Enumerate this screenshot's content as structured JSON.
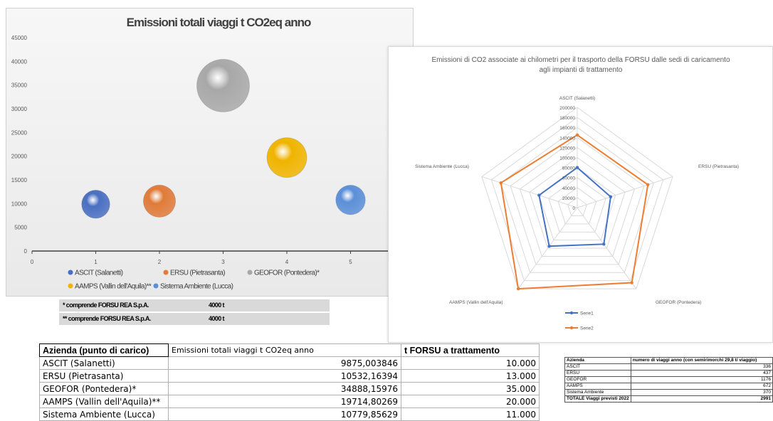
{
  "chart_data": [
    {
      "type": "scatter",
      "title": "Emissioni totali viaggi t CO2eq anno",
      "x": [
        1,
        2,
        3,
        4,
        5
      ],
      "series": [
        {
          "name": "ASCIT (Salanetti)",
          "x": 1,
          "y": 9875.003846,
          "size": 10000
        },
        {
          "name": "ERSU (Pietrasanta)",
          "x": 2,
          "y": 10532.16394,
          "size": 13000
        },
        {
          "name": "GEOFOR (Pontedera)*",
          "x": 3,
          "y": 34888.15976,
          "size": 35000
        },
        {
          "name": "AAMPS (Vallin dell'Aquila)**",
          "x": 4,
          "y": 19714.80269,
          "size": 20000
        },
        {
          "name": "Sistema Ambiente (Lucca)",
          "x": 5,
          "y": 10779.85629,
          "size": 11000
        }
      ],
      "xlim": [
        0,
        6
      ],
      "ylim": [
        0,
        45000
      ],
      "x_ticks": [
        "0",
        "1",
        "2",
        "3",
        "4",
        "5"
      ],
      "y_ticks": [
        "0",
        "5000",
        "10000",
        "15000",
        "20000",
        "25000",
        "30000",
        "35000",
        "40000",
        "45000"
      ],
      "legend_position": "bottom",
      "colors": [
        "#4a6fc2",
        "#e07b39",
        "#a8a8a8",
        "#f0b400",
        "#5b8fd8"
      ]
    },
    {
      "type": "radar",
      "title": "Emissioni di CO2 associate ai chilometri per il trasporto della FORSU dalle sedi di caricamento agli impianti di trattamento",
      "title_line1": "Emissioni di CO2 associate ai chilometri per il trasporto della FORSU dalle sedi di caricamento",
      "title_line2": "agli impianti di trattamento",
      "categories": [
        "ASCIT (Salanetti)",
        "ERSU (Pietrasanta)",
        "GEOFOR (Pontedera)",
        "AAMPS (Vallin dell'Aquila)",
        "Sistema Ambiente (Lucca)"
      ],
      "series": [
        {
          "name": "Serie1",
          "values": [
            80000,
            70000,
            90000,
            95000,
            80000
          ],
          "color": "#4472c4"
        },
        {
          "name": "Serie2",
          "values": [
            145000,
            148000,
            185000,
            200000,
            160000
          ],
          "color": "#ed7d31"
        }
      ],
      "rlim": [
        0,
        200000
      ],
      "r_ticks": [
        "0",
        "20000",
        "40000",
        "60000",
        "80000",
        "100000",
        "120000",
        "140000",
        "160000",
        "180000",
        "200000"
      ],
      "legend_position": "bottom"
    }
  ],
  "notes": [
    {
      "label": "* comprende FORSU REA S.p.A.",
      "value": "4000 t"
    },
    {
      "label": "** comprende FORSU REA S.p.A.",
      "value": "4000 t"
    }
  ],
  "main_table": {
    "headers": [
      "Azienda (punto di carico)",
      "Emissioni totali viaggi t CO2eq anno",
      "t FORSU a trattamento"
    ],
    "rows": [
      [
        "ASCIT (Salanetti)",
        "9875,003846",
        "10.000"
      ],
      [
        "ERSU (Pietrasanta)",
        "10532,16394",
        "13.000"
      ],
      [
        "GEOFOR (Pontedera)*",
        "34888,15976",
        "35.000"
      ],
      [
        "AAMPS (Vallin dell'Aquila)**",
        "19714,80269",
        "20.000"
      ],
      [
        "Sistema Ambiente (Lucca)",
        "10779,85629",
        "11.000"
      ]
    ]
  },
  "trip_table": {
    "headers": [
      "Azienda",
      "numero di viaggi anno (con semirimorchi 29,8 t/ viaggio)"
    ],
    "rows": [
      [
        "ASCIT",
        "336"
      ],
      [
        "ERSU",
        "437"
      ],
      [
        "GEOFOR",
        "1176"
      ],
      [
        "AAMPS",
        "672"
      ],
      [
        "Sistema Ambiente",
        "370"
      ]
    ],
    "total": [
      "TOTALE Viaggi previsti 2022",
      "2991"
    ]
  }
}
